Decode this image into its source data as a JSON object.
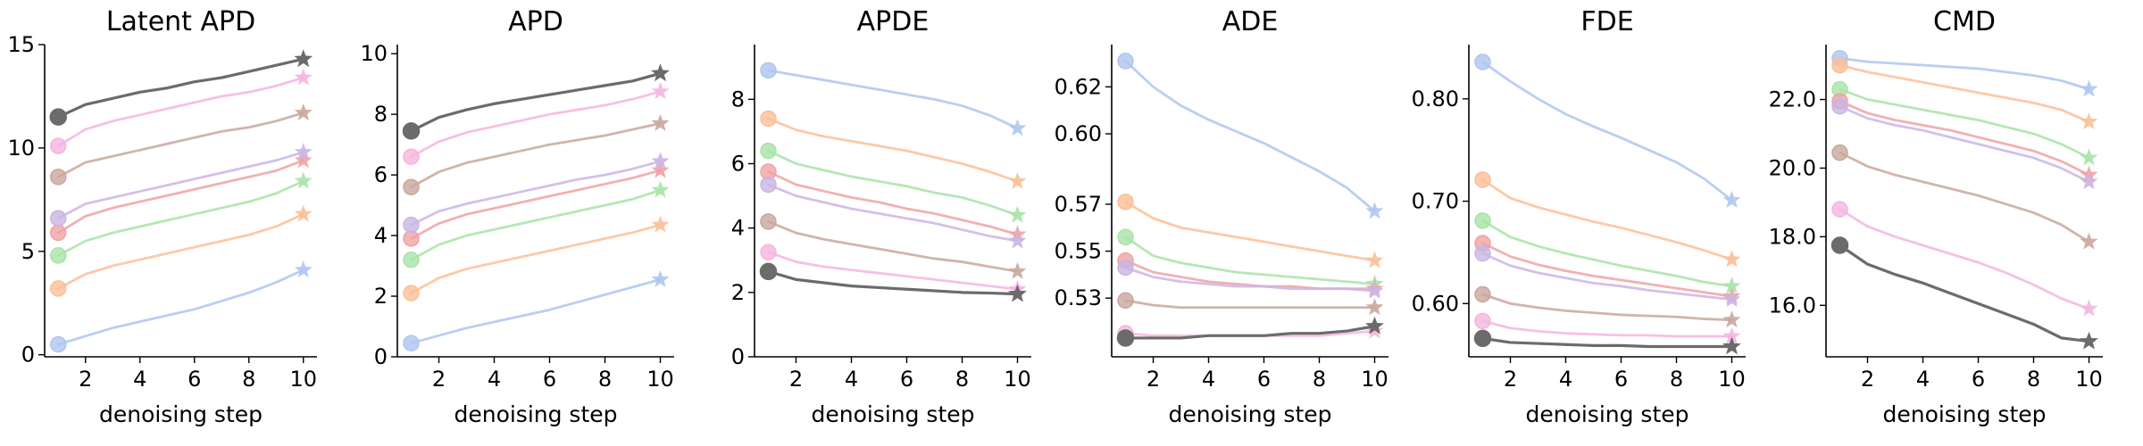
{
  "colors": {
    "blue": "#aec6ef",
    "orange": "#fbbf97",
    "green": "#a9e3a8",
    "red": "#f0a2a5",
    "purple": "#cbb5e4",
    "brown": "#c9a79c",
    "pink": "#f5b5e0",
    "gray": "#6b6b6b"
  },
  "chart_data": [
    {
      "type": "line",
      "title": "Latent APD",
      "xlabel": "denoising step",
      "ylabel": "",
      "x": [
        1,
        2,
        3,
        4,
        5,
        6,
        7,
        8,
        9,
        10
      ],
      "xticks": [
        2,
        4,
        6,
        8,
        10
      ],
      "xlim": [
        0.5,
        10.5
      ],
      "ylim": [
        -0.1,
        15.0
      ],
      "yticks": [
        0,
        5,
        10,
        15
      ],
      "ytick_labels": [
        "0",
        "5",
        "10",
        "15"
      ],
      "start_marker": "circle",
      "end_marker": "star",
      "series": [
        {
          "color": "blue",
          "values": [
            0.5,
            0.9,
            1.3,
            1.6,
            1.9,
            2.2,
            2.6,
            3.0,
            3.5,
            4.1
          ]
        },
        {
          "color": "orange",
          "values": [
            3.2,
            3.9,
            4.3,
            4.6,
            4.9,
            5.2,
            5.5,
            5.8,
            6.2,
            6.8
          ]
        },
        {
          "color": "green",
          "values": [
            4.8,
            5.5,
            5.9,
            6.2,
            6.5,
            6.8,
            7.1,
            7.4,
            7.8,
            8.4
          ]
        },
        {
          "color": "red",
          "values": [
            5.9,
            6.7,
            7.1,
            7.4,
            7.7,
            8.0,
            8.3,
            8.6,
            8.9,
            9.4
          ]
        },
        {
          "color": "purple",
          "values": [
            6.6,
            7.3,
            7.6,
            7.9,
            8.2,
            8.5,
            8.8,
            9.1,
            9.4,
            9.8
          ]
        },
        {
          "color": "brown",
          "values": [
            8.6,
            9.3,
            9.6,
            9.9,
            10.2,
            10.5,
            10.8,
            11.0,
            11.3,
            11.7
          ]
        },
        {
          "color": "pink",
          "values": [
            10.1,
            10.9,
            11.3,
            11.6,
            11.9,
            12.2,
            12.5,
            12.7,
            13.0,
            13.4
          ]
        },
        {
          "color": "gray",
          "values": [
            11.5,
            12.1,
            12.4,
            12.7,
            12.9,
            13.2,
            13.4,
            13.7,
            14.0,
            14.3
          ]
        }
      ]
    },
    {
      "type": "line",
      "title": "APD",
      "xlabel": "denoising step",
      "ylabel": "",
      "x": [
        1,
        2,
        3,
        4,
        5,
        6,
        7,
        8,
        9,
        10
      ],
      "xticks": [
        2,
        4,
        6,
        8,
        10
      ],
      "xlim": [
        0.5,
        10.5
      ],
      "ylim": [
        0,
        10.3
      ],
      "yticks": [
        0,
        2,
        4,
        6,
        8,
        10
      ],
      "ytick_labels": [
        "0",
        "2",
        "4",
        "6",
        "8",
        "10"
      ],
      "start_marker": "circle",
      "end_marker": "star",
      "series": [
        {
          "color": "blue",
          "values": [
            0.45,
            0.7,
            0.95,
            1.15,
            1.35,
            1.55,
            1.8,
            2.05,
            2.3,
            2.55
          ]
        },
        {
          "color": "orange",
          "values": [
            2.1,
            2.6,
            2.9,
            3.1,
            3.3,
            3.5,
            3.7,
            3.9,
            4.1,
            4.35
          ]
        },
        {
          "color": "green",
          "values": [
            3.2,
            3.7,
            4.0,
            4.2,
            4.4,
            4.6,
            4.8,
            5.0,
            5.2,
            5.5
          ]
        },
        {
          "color": "red",
          "values": [
            3.9,
            4.4,
            4.7,
            4.9,
            5.1,
            5.3,
            5.5,
            5.7,
            5.9,
            6.15
          ]
        },
        {
          "color": "purple",
          "values": [
            4.35,
            4.8,
            5.05,
            5.25,
            5.45,
            5.65,
            5.85,
            6.0,
            6.2,
            6.45
          ]
        },
        {
          "color": "brown",
          "values": [
            5.6,
            6.1,
            6.4,
            6.6,
            6.8,
            7.0,
            7.15,
            7.3,
            7.5,
            7.7
          ]
        },
        {
          "color": "pink",
          "values": [
            6.6,
            7.1,
            7.4,
            7.6,
            7.8,
            8.0,
            8.15,
            8.3,
            8.5,
            8.75
          ]
        },
        {
          "color": "gray",
          "values": [
            7.45,
            7.9,
            8.15,
            8.35,
            8.5,
            8.65,
            8.8,
            8.95,
            9.1,
            9.35
          ]
        }
      ]
    },
    {
      "type": "line",
      "title": "APDE",
      "xlabel": "denoising step",
      "ylabel": "",
      "x": [
        1,
        2,
        3,
        4,
        5,
        6,
        7,
        8,
        9,
        10
      ],
      "xticks": [
        2,
        4,
        6,
        8,
        10
      ],
      "xlim": [
        0.5,
        10.5
      ],
      "ylim": [
        0,
        9.7
      ],
      "yticks": [
        0,
        2,
        4,
        6,
        8
      ],
      "ytick_labels": [
        "0",
        "2",
        "4",
        "6",
        "8"
      ],
      "start_marker": "circle",
      "end_marker": "star",
      "series": [
        {
          "color": "blue",
          "values": [
            8.9,
            8.75,
            8.6,
            8.45,
            8.3,
            8.15,
            8.0,
            7.8,
            7.5,
            7.1
          ]
        },
        {
          "color": "orange",
          "values": [
            7.4,
            7.05,
            6.85,
            6.7,
            6.55,
            6.4,
            6.2,
            6.0,
            5.75,
            5.45
          ]
        },
        {
          "color": "green",
          "values": [
            6.4,
            6.0,
            5.8,
            5.6,
            5.45,
            5.3,
            5.1,
            4.95,
            4.7,
            4.4
          ]
        },
        {
          "color": "red",
          "values": [
            5.75,
            5.35,
            5.15,
            4.95,
            4.8,
            4.6,
            4.45,
            4.25,
            4.05,
            3.8
          ]
        },
        {
          "color": "purple",
          "values": [
            5.35,
            5.0,
            4.8,
            4.6,
            4.45,
            4.3,
            4.15,
            3.95,
            3.75,
            3.6
          ]
        },
        {
          "color": "brown",
          "values": [
            4.2,
            3.85,
            3.65,
            3.5,
            3.35,
            3.2,
            3.05,
            2.95,
            2.8,
            2.65
          ]
        },
        {
          "color": "pink",
          "values": [
            3.25,
            2.95,
            2.8,
            2.7,
            2.6,
            2.5,
            2.4,
            2.3,
            2.2,
            2.1
          ]
        },
        {
          "color": "gray",
          "values": [
            2.65,
            2.4,
            2.3,
            2.2,
            2.15,
            2.1,
            2.05,
            2.0,
            1.98,
            1.95
          ]
        }
      ]
    },
    {
      "type": "line",
      "title": "ADE",
      "xlabel": "denoising step",
      "ylabel": "",
      "x": [
        1,
        2,
        3,
        4,
        5,
        6,
        7,
        8,
        9,
        10
      ],
      "xticks": [
        2,
        4,
        6,
        8,
        10
      ],
      "xlim": [
        0.5,
        10.5
      ],
      "ylim": [
        0.505,
        0.638
      ],
      "yticks": [
        0.53,
        0.55,
        0.57,
        0.6,
        0.62
      ],
      "ytick_labels": [
        "0.53",
        "0.55",
        "0.57",
        "0.60",
        "0.62"
      ],
      "start_marker": "circle",
      "end_marker": "star",
      "series": [
        {
          "color": "blue",
          "values": [
            0.631,
            0.62,
            0.612,
            0.606,
            0.601,
            0.596,
            0.59,
            0.584,
            0.577,
            0.567
          ]
        },
        {
          "color": "orange",
          "values": [
            0.571,
            0.564,
            0.56,
            0.558,
            0.556,
            0.554,
            0.552,
            0.55,
            0.548,
            0.546
          ]
        },
        {
          "color": "green",
          "values": [
            0.556,
            0.548,
            0.545,
            0.543,
            0.541,
            0.54,
            0.539,
            0.538,
            0.537,
            0.536
          ]
        },
        {
          "color": "red",
          "values": [
            0.546,
            0.541,
            0.539,
            0.537,
            0.536,
            0.535,
            0.535,
            0.534,
            0.534,
            0.534
          ]
        },
        {
          "color": "purple",
          "values": [
            0.543,
            0.539,
            0.537,
            0.536,
            0.535,
            0.535,
            0.534,
            0.534,
            0.534,
            0.533
          ]
        },
        {
          "color": "brown",
          "values": [
            0.529,
            0.527,
            0.526,
            0.526,
            0.526,
            0.526,
            0.526,
            0.526,
            0.526,
            0.526
          ]
        },
        {
          "color": "pink",
          "values": [
            0.515,
            0.514,
            0.514,
            0.514,
            0.514,
            0.514,
            0.514,
            0.514,
            0.515,
            0.516
          ]
        },
        {
          "color": "gray",
          "values": [
            0.513,
            0.513,
            0.513,
            0.514,
            0.514,
            0.514,
            0.515,
            0.515,
            0.516,
            0.518
          ]
        }
      ]
    },
    {
      "type": "line",
      "title": "FDE",
      "xlabel": "denoising step",
      "ylabel": "",
      "x": [
        1,
        2,
        3,
        4,
        5,
        6,
        7,
        8,
        9,
        10
      ],
      "xticks": [
        2,
        4,
        6,
        8,
        10
      ],
      "xlim": [
        0.5,
        10.5
      ],
      "ylim": [
        0.548,
        0.853
      ],
      "yticks": [
        0.6,
        0.7,
        0.8
      ],
      "ytick_labels": [
        "0.60",
        "0.70",
        "0.80"
      ],
      "start_marker": "circle",
      "end_marker": "star",
      "series": [
        {
          "color": "blue",
          "values": [
            0.836,
            0.817,
            0.8,
            0.785,
            0.773,
            0.762,
            0.75,
            0.738,
            0.722,
            0.701
          ]
        },
        {
          "color": "orange",
          "values": [
            0.721,
            0.703,
            0.694,
            0.687,
            0.68,
            0.674,
            0.667,
            0.66,
            0.652,
            0.643
          ]
        },
        {
          "color": "green",
          "values": [
            0.681,
            0.665,
            0.656,
            0.649,
            0.643,
            0.637,
            0.632,
            0.627,
            0.621,
            0.617
          ]
        },
        {
          "color": "red",
          "values": [
            0.659,
            0.646,
            0.638,
            0.632,
            0.627,
            0.623,
            0.619,
            0.615,
            0.611,
            0.607
          ]
        },
        {
          "color": "purple",
          "values": [
            0.649,
            0.637,
            0.63,
            0.625,
            0.62,
            0.617,
            0.613,
            0.61,
            0.607,
            0.604
          ]
        },
        {
          "color": "brown",
          "values": [
            0.609,
            0.6,
            0.596,
            0.593,
            0.591,
            0.589,
            0.588,
            0.587,
            0.585,
            0.584
          ]
        },
        {
          "color": "pink",
          "values": [
            0.583,
            0.576,
            0.573,
            0.571,
            0.57,
            0.569,
            0.569,
            0.568,
            0.568,
            0.568
          ]
        },
        {
          "color": "gray",
          "values": [
            0.566,
            0.562,
            0.561,
            0.56,
            0.559,
            0.559,
            0.558,
            0.558,
            0.558,
            0.558
          ]
        }
      ]
    },
    {
      "type": "line",
      "title": "CMD",
      "xlabel": "denoising step",
      "ylabel": "",
      "x": [
        1,
        2,
        3,
        4,
        5,
        6,
        7,
        8,
        9,
        10
      ],
      "xticks": [
        2,
        4,
        6,
        8,
        10
      ],
      "xlim": [
        0.5,
        10.5
      ],
      "ylim": [
        14.5,
        23.6
      ],
      "yticks": [
        16,
        18,
        20,
        22
      ],
      "ytick_labels": [
        "16.0",
        "18.0",
        "20.0",
        "22.0"
      ],
      "start_marker": "circle",
      "end_marker": "star",
      "series": [
        {
          "color": "blue",
          "values": [
            23.2,
            23.1,
            23.05,
            23.0,
            22.95,
            22.9,
            22.8,
            22.7,
            22.55,
            22.3
          ]
        },
        {
          "color": "orange",
          "values": [
            23.0,
            22.8,
            22.65,
            22.5,
            22.35,
            22.2,
            22.05,
            21.9,
            21.7,
            21.35
          ]
        },
        {
          "color": "green",
          "values": [
            22.3,
            22.0,
            21.85,
            21.7,
            21.55,
            21.4,
            21.2,
            21.0,
            20.7,
            20.3
          ]
        },
        {
          "color": "red",
          "values": [
            21.95,
            21.6,
            21.4,
            21.25,
            21.1,
            20.9,
            20.7,
            20.5,
            20.2,
            19.8
          ]
        },
        {
          "color": "purple",
          "values": [
            21.8,
            21.45,
            21.25,
            21.1,
            20.9,
            20.7,
            20.5,
            20.3,
            20.0,
            19.6
          ]
        },
        {
          "color": "brown",
          "values": [
            20.45,
            20.05,
            19.8,
            19.6,
            19.4,
            19.2,
            18.95,
            18.7,
            18.35,
            17.85
          ]
        },
        {
          "color": "pink",
          "values": [
            18.8,
            18.3,
            18.0,
            17.75,
            17.5,
            17.25,
            16.95,
            16.6,
            16.2,
            15.9
          ]
        },
        {
          "color": "gray",
          "values": [
            17.75,
            17.2,
            16.9,
            16.65,
            16.35,
            16.05,
            15.75,
            15.45,
            15.05,
            14.95
          ]
        }
      ]
    }
  ]
}
